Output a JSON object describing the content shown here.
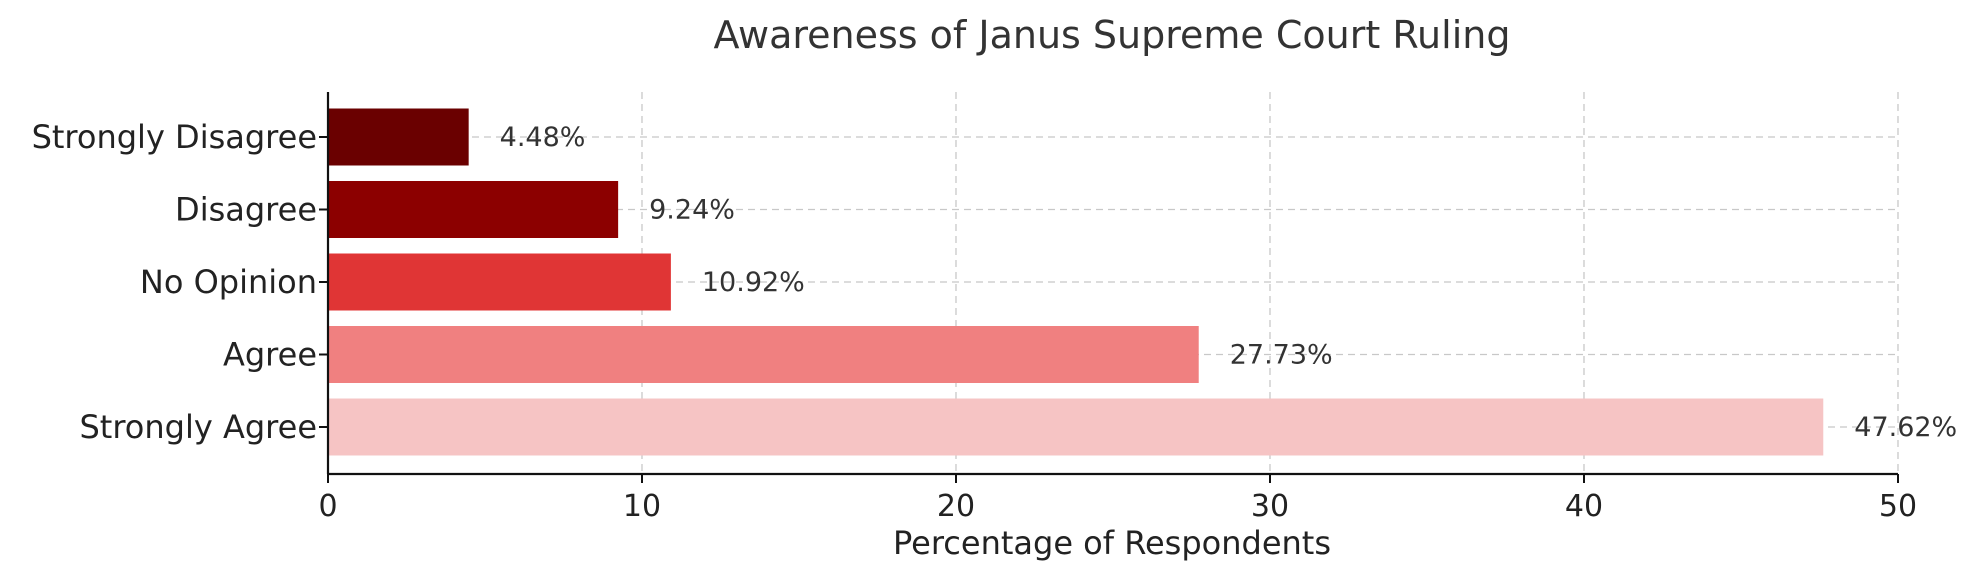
{
  "chart_data": {
    "type": "bar",
    "orientation": "horizontal",
    "title": "Awareness of Janus Supreme Court Ruling",
    "xlabel": "Percentage of Respondents",
    "ylabel": "",
    "xlim": [
      0,
      50
    ],
    "xticks": [
      0,
      10,
      20,
      30,
      40,
      50
    ],
    "grid": true,
    "categories": [
      "Strongly Agree",
      "Agree",
      "No Opinion",
      "Disagree",
      "Strongly Disagree"
    ],
    "values": [
      47.62,
      27.73,
      10.92,
      9.24,
      4.48
    ],
    "value_labels": [
      "47.62%",
      "27.73%",
      "10.92%",
      "9.24%",
      "4.48%"
    ],
    "colors": [
      "#f6c4c4",
      "#f08080",
      "#e03535",
      "#8c0000",
      "#6a0000"
    ]
  }
}
